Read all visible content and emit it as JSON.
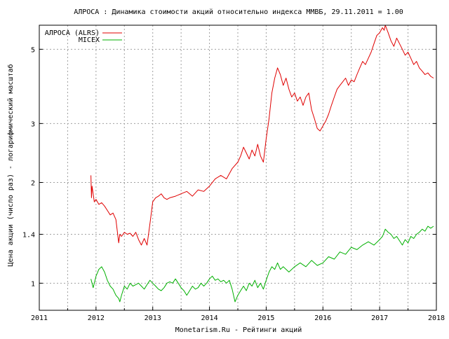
{
  "chart_data": {
    "type": "line",
    "title": "АЛРОСА : Динамика стоимости акций относительно индекса ММВБ, 29.11.2011 = 1.00",
    "xlabel": "Monetarism.Ru - Рейтинги акций",
    "ylabel": "Цена акции (число раз) - логарифмический масштаб",
    "y_scale": "log",
    "xlim": [
      2011,
      2018
    ],
    "ylim": [
      0.83,
      5.9
    ],
    "x_ticks": [
      "2011",
      "2012",
      "2013",
      "2014",
      "2015",
      "2016",
      "2017",
      "2018"
    ],
    "y_ticks": [
      {
        "value": 1,
        "label": "1"
      },
      {
        "value": 1.4,
        "label": "1.4"
      },
      {
        "value": 2,
        "label": "2"
      },
      {
        "value": 3,
        "label": "3"
      },
      {
        "value": 5,
        "label": "5"
      }
    ],
    "grid": true,
    "legend_position": "top-left",
    "series": [
      {
        "name": "АЛРОСА (ALRS)",
        "color": "#e00000",
        "x": [
          2011.91,
          2011.92,
          2011.93,
          2011.95,
          2011.97,
          2012.0,
          2012.05,
          2012.1,
          2012.15,
          2012.2,
          2012.25,
          2012.3,
          2012.35,
          2012.4,
          2012.42,
          2012.45,
          2012.5,
          2012.55,
          2012.6,
          2012.65,
          2012.7,
          2012.75,
          2012.8,
          2012.85,
          2012.9,
          2012.93,
          2012.96,
          2013.0,
          2013.05,
          2013.1,
          2013.15,
          2013.2,
          2013.25,
          2013.3,
          2013.4,
          2013.5,
          2013.6,
          2013.7,
          2013.8,
          2013.9,
          2014.0,
          2014.1,
          2014.2,
          2014.3,
          2014.4,
          2014.5,
          2014.55,
          2014.6,
          2014.65,
          2014.7,
          2014.75,
          2014.8,
          2014.85,
          2014.9,
          2014.95,
          2015.0,
          2015.05,
          2015.1,
          2015.15,
          2015.2,
          2015.25,
          2015.3,
          2015.35,
          2015.4,
          2015.45,
          2015.5,
          2015.55,
          2015.6,
          2015.65,
          2015.7,
          2015.75,
          2015.8,
          2015.85,
          2015.9,
          2015.95,
          2016.0,
          2016.05,
          2016.1,
          2016.15,
          2016.2,
          2016.25,
          2016.3,
          2016.35,
          2016.4,
          2016.45,
          2016.5,
          2016.55,
          2016.6,
          2016.65,
          2016.7,
          2016.75,
          2016.8,
          2016.85,
          2016.9,
          2016.95,
          2017.0,
          2017.05,
          2017.08,
          2017.1,
          2017.15,
          2017.2,
          2017.25,
          2017.3,
          2017.35,
          2017.4,
          2017.45,
          2017.5,
          2017.55,
          2017.6,
          2017.65,
          2017.7,
          2017.75,
          2017.8,
          2017.85,
          2017.9,
          2017.95
        ],
        "values": [
          2.1,
          1.8,
          1.95,
          1.85,
          1.75,
          1.78,
          1.72,
          1.74,
          1.7,
          1.65,
          1.6,
          1.62,
          1.55,
          1.32,
          1.4,
          1.38,
          1.42,
          1.4,
          1.41,
          1.38,
          1.42,
          1.35,
          1.3,
          1.36,
          1.3,
          1.42,
          1.55,
          1.75,
          1.8,
          1.82,
          1.85,
          1.8,
          1.78,
          1.8,
          1.82,
          1.85,
          1.88,
          1.82,
          1.9,
          1.88,
          1.95,
          2.05,
          2.1,
          2.05,
          2.2,
          2.3,
          2.4,
          2.55,
          2.45,
          2.35,
          2.5,
          2.4,
          2.6,
          2.4,
          2.3,
          2.7,
          3.1,
          3.7,
          4.1,
          4.4,
          4.2,
          3.9,
          4.1,
          3.8,
          3.6,
          3.7,
          3.5,
          3.6,
          3.4,
          3.6,
          3.7,
          3.3,
          3.1,
          2.9,
          2.85,
          2.95,
          3.05,
          3.2,
          3.4,
          3.6,
          3.8,
          3.9,
          4.0,
          4.1,
          3.9,
          4.05,
          4.0,
          4.2,
          4.4,
          4.6,
          4.5,
          4.7,
          4.9,
          5.2,
          5.5,
          5.6,
          5.8,
          5.7,
          5.9,
          5.6,
          5.3,
          5.1,
          5.4,
          5.2,
          5.0,
          4.8,
          4.9,
          4.7,
          4.5,
          4.6,
          4.4,
          4.3,
          4.2,
          4.25,
          4.15,
          4.1
        ]
      },
      {
        "name": "MICEX",
        "color": "#00b000",
        "x": [
          2011.91,
          2011.95,
          2012.0,
          2012.05,
          2012.1,
          2012.15,
          2012.2,
          2012.25,
          2012.3,
          2012.35,
          2012.4,
          2012.42,
          2012.45,
          2012.5,
          2012.55,
          2012.6,
          2012.65,
          2012.7,
          2012.75,
          2012.8,
          2012.85,
          2012.9,
          2012.95,
          2013.0,
          2013.05,
          2013.1,
          2013.15,
          2013.2,
          2013.25,
          2013.3,
          2013.35,
          2013.4,
          2013.45,
          2013.5,
          2013.55,
          2013.6,
          2013.65,
          2013.7,
          2013.75,
          2013.8,
          2013.85,
          2013.9,
          2013.95,
          2014.0,
          2014.05,
          2014.1,
          2014.15,
          2014.2,
          2014.25,
          2014.3,
          2014.35,
          2014.4,
          2014.45,
          2014.5,
          2014.55,
          2014.6,
          2014.65,
          2014.7,
          2014.75,
          2014.8,
          2014.85,
          2014.9,
          2014.95,
          2015.0,
          2015.05,
          2015.1,
          2015.15,
          2015.2,
          2015.25,
          2015.3,
          2015.4,
          2015.5,
          2015.6,
          2015.7,
          2015.8,
          2015.9,
          2016.0,
          2016.1,
          2016.2,
          2016.3,
          2016.4,
          2016.5,
          2016.6,
          2016.7,
          2016.8,
          2016.9,
          2017.0,
          2017.05,
          2017.1,
          2017.15,
          2017.2,
          2017.25,
          2017.3,
          2017.35,
          2017.4,
          2017.45,
          2017.5,
          2017.55,
          2017.6,
          2017.65,
          2017.7,
          2017.75,
          2017.8,
          2017.85,
          2017.9,
          2017.95
        ],
        "values": [
          1.03,
          0.97,
          1.05,
          1.1,
          1.12,
          1.08,
          1.02,
          0.98,
          0.96,
          0.92,
          0.9,
          0.88,
          0.92,
          0.98,
          0.96,
          1.0,
          0.98,
          0.99,
          1.0,
          0.98,
          0.96,
          0.99,
          1.02,
          1.0,
          0.98,
          0.96,
          0.95,
          0.97,
          1.0,
          1.01,
          1.0,
          1.03,
          1.0,
          0.97,
          0.95,
          0.92,
          0.95,
          0.98,
          0.96,
          0.97,
          1.0,
          0.98,
          1.0,
          1.03,
          1.05,
          1.02,
          1.03,
          1.01,
          1.02,
          1.0,
          1.02,
          0.96,
          0.88,
          0.92,
          0.95,
          0.98,
          0.95,
          1.0,
          0.98,
          1.02,
          0.97,
          1.0,
          0.96,
          1.02,
          1.08,
          1.12,
          1.1,
          1.15,
          1.1,
          1.12,
          1.08,
          1.12,
          1.15,
          1.12,
          1.17,
          1.13,
          1.15,
          1.2,
          1.18,
          1.24,
          1.22,
          1.28,
          1.26,
          1.3,
          1.33,
          1.3,
          1.35,
          1.38,
          1.45,
          1.42,
          1.4,
          1.36,
          1.38,
          1.34,
          1.3,
          1.35,
          1.32,
          1.38,
          1.36,
          1.4,
          1.42,
          1.45,
          1.43,
          1.48,
          1.46,
          1.48
        ]
      }
    ]
  }
}
